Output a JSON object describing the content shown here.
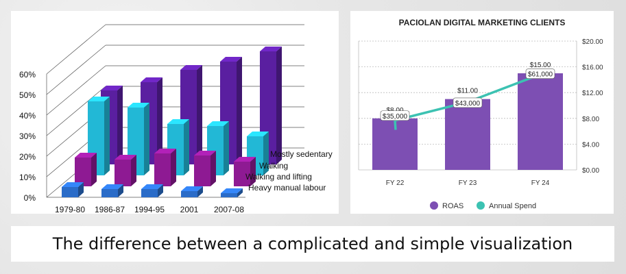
{
  "caption": "The difference between a complicated and simple visualization",
  "colors": {
    "purple_dark": "#5a1fa0",
    "magenta": "#8e1a93",
    "cyan": "#22b8d6",
    "blue": "#2a6cc8",
    "roas": "#7d4fb3",
    "spend": "#3cc2b2"
  },
  "chart_data": [
    {
      "type": "bar",
      "style": "3d",
      "title": "",
      "categories": [
        "1979-80",
        "1986-87",
        "1994-95",
        "2001",
        "2007-08"
      ],
      "ylim": [
        0,
        60
      ],
      "y_ticks": [
        "0%",
        "10%",
        "20%",
        "30%",
        "40%",
        "50%",
        "60%"
      ],
      "series": [
        {
          "name": "Heavy manual labour",
          "values": [
            5,
            4,
            4,
            3,
            2
          ]
        },
        {
          "name": "Walking and lifting",
          "values": [
            14,
            13,
            16,
            15,
            12
          ]
        },
        {
          "name": "Walking",
          "values": [
            36,
            33,
            25,
            24,
            19
          ]
        },
        {
          "name": "Mostly sedentary",
          "values": [
            36,
            40,
            46,
            50,
            55
          ]
        }
      ],
      "legend": "right"
    },
    {
      "type": "bar",
      "title": "PACIOLAN DIGITAL MARKETING CLIENTS",
      "categories": [
        "FY 22",
        "FY 23",
        "FY 24"
      ],
      "bar_series": {
        "name": "ROAS",
        "values": [
          8,
          11,
          15
        ],
        "labels": [
          "$8.00",
          "$11.00",
          "$15.00"
        ]
      },
      "line_series": {
        "name": "Annual Spend",
        "values": [
          35000,
          43000,
          61000
        ],
        "labels": [
          "$35,000",
          "$43,000",
          "$61,000"
        ]
      },
      "y_right_ticks": [
        "$0.00",
        "$4.00",
        "$8.00",
        "$12.00",
        "$16.00",
        "$20.00"
      ],
      "ylim": [
        0,
        20
      ],
      "legend": "bottom"
    }
  ]
}
